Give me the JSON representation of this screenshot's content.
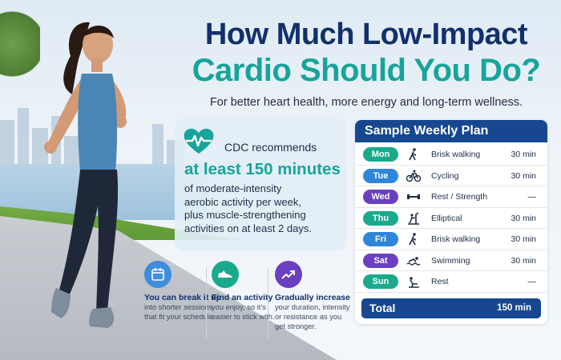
{
  "title": {
    "line1": "How Much Low-Impact",
    "line2": "Cardio Should You Do?",
    "subtitle": "For better heart health, more energy and long-term wellness."
  },
  "cdc": {
    "intro": "CDC recommends",
    "highlight": "at least 150 minutes",
    "body": [
      "of moderate-intensity",
      "aerobic activity per week,",
      "plus muscle-strengthening",
      "activities on at least 2 days."
    ]
  },
  "tips": [
    {
      "icon": "calendar-icon",
      "title": "You can break it up",
      "body": [
        "into shorter sessions",
        "that fit your schedule."
      ]
    },
    {
      "icon": "sneaker-icon",
      "title": "Find an activity",
      "body": [
        "you enjoy, so it's",
        "easier to stick with."
      ]
    },
    {
      "icon": "trend-up-icon",
      "title": "Gradually increase",
      "body": [
        "your duration, intensity",
        "or resistance as you",
        "get stronger."
      ]
    }
  ],
  "plan": {
    "title": "Sample Weekly Plan",
    "rows": [
      {
        "day": "Mon",
        "color": "#1aa98c",
        "icon": "walking-icon",
        "activity": "Brisk walking",
        "duration": "30 min"
      },
      {
        "day": "Tue",
        "color": "#2f86d8",
        "icon": "cycling-icon",
        "activity": "Cycling",
        "duration": "30 min"
      },
      {
        "day": "Wed",
        "color": "#6a3fc2",
        "icon": "dumbbell-icon",
        "activity": "Rest / Strength",
        "duration": "—"
      },
      {
        "day": "Thu",
        "color": "#1aa98c",
        "icon": "elliptical-icon",
        "activity": "Elliptical",
        "duration": "30 min"
      },
      {
        "day": "Fri",
        "color": "#2f86d8",
        "icon": "walking-icon",
        "activity": "Brisk walking",
        "duration": "30 min"
      },
      {
        "day": "Sat",
        "color": "#6a3fc2",
        "icon": "swimming-icon",
        "activity": "Swimming",
        "duration": "30 min"
      },
      {
        "day": "Sun",
        "color": "#1aa98c",
        "icon": "rest-icon",
        "activity": "Rest",
        "duration": "—"
      }
    ],
    "total_label": "Total",
    "total_value": "150 min"
  },
  "colors": {
    "navy": "#12306b",
    "teal": "#17a49b",
    "plan_header": "#16478f"
  }
}
